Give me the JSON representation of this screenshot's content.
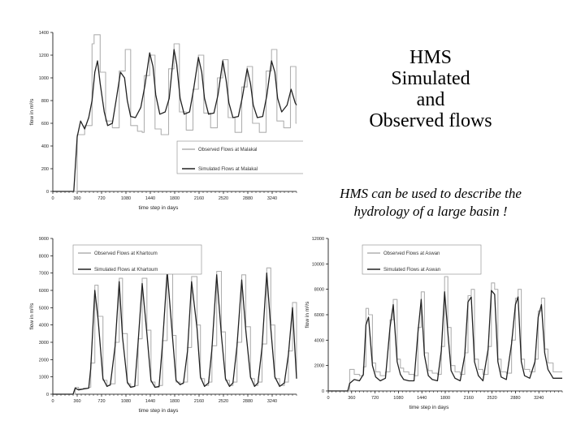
{
  "slide": {
    "title_lines": [
      "HMS",
      "Simulated",
      "and",
      "Observed flows"
    ],
    "caption_lines": [
      "HMS can be used to describe the",
      "hydrology of a large basin !"
    ]
  },
  "chart_data": [
    {
      "type": "line",
      "title": "",
      "xlabel": "time step in days",
      "ylabel": "flow in m³/s",
      "xlim": [
        0,
        3600
      ],
      "ylim": [
        0,
        1400
      ],
      "xticks": [
        0,
        360,
        720,
        1080,
        1440,
        1800,
        2160,
        2520,
        2880,
        3240
      ],
      "yticks": [
        0,
        200,
        400,
        600,
        800,
        1000,
        1200,
        1400
      ],
      "legend_position": "bottom-right",
      "series": [
        {
          "name": "Observed Flows at Malakal",
          "color": "#b0b0b0",
          "style": "stepped",
          "x": [
            0,
            310,
            360,
            470,
            580,
            610,
            700,
            780,
            880,
            950,
            980,
            1070,
            1150,
            1250,
            1320,
            1350,
            1430,
            1510,
            1600,
            1680,
            1710,
            1790,
            1870,
            1970,
            2040,
            2070,
            2150,
            2230,
            2330,
            2400,
            2430,
            2510,
            2590,
            2690,
            2760,
            2790,
            2870,
            2950,
            3050,
            3120,
            3150,
            3230,
            3310,
            3410,
            3480,
            3510,
            3590,
            3600
          ],
          "y": [
            0,
            0,
            500,
            580,
            1300,
            1380,
            1050,
            620,
            560,
            560,
            1060,
            1250,
            580,
            530,
            520,
            1020,
            1200,
            550,
            500,
            500,
            1080,
            1300,
            700,
            540,
            540,
            900,
            1200,
            690,
            560,
            560,
            1000,
            1160,
            650,
            520,
            520,
            920,
            1100,
            600,
            520,
            520,
            1060,
            1250,
            620,
            560,
            560,
            1100,
            600,
            600
          ]
        },
        {
          "name": "Simulated Flows at Malakal",
          "color": "#222222",
          "style": "smooth",
          "x": [
            0,
            310,
            360,
            410,
            470,
            530,
            580,
            620,
            660,
            700,
            760,
            810,
            880,
            940,
            1000,
            1060,
            1100,
            1150,
            1220,
            1300,
            1360,
            1430,
            1480,
            1520,
            1580,
            1660,
            1720,
            1790,
            1830,
            1880,
            1940,
            2020,
            2080,
            2150,
            2200,
            2240,
            2300,
            2380,
            2440,
            2510,
            2560,
            2600,
            2660,
            2740,
            2800,
            2870,
            2920,
            2960,
            3020,
            3100,
            3160,
            3230,
            3280,
            3320,
            3380,
            3460,
            3520,
            3580,
            3600
          ],
          "y": [
            0,
            0,
            480,
            620,
            550,
            650,
            800,
            1050,
            1150,
            950,
            700,
            580,
            600,
            820,
            1050,
            1000,
            800,
            660,
            650,
            740,
            930,
            1220,
            1100,
            850,
            680,
            700,
            820,
            1250,
            1120,
            820,
            680,
            700,
            900,
            1180,
            1050,
            820,
            680,
            690,
            850,
            1150,
            980,
            780,
            650,
            660,
            830,
            1080,
            950,
            760,
            650,
            660,
            840,
            1150,
            1050,
            820,
            700,
            760,
            900,
            780,
            760
          ]
        }
      ]
    },
    {
      "type": "line",
      "title": "",
      "xlabel": "time step in days",
      "ylabel": "flow in m³/s",
      "xlim": [
        0,
        3600
      ],
      "ylim": [
        0,
        9000
      ],
      "xticks": [
        0,
        360,
        720,
        1080,
        1440,
        1800,
        2160,
        2520,
        2880,
        3240
      ],
      "yticks": [
        0,
        1000,
        2000,
        3000,
        4000,
        5000,
        6000,
        7000,
        8000,
        9000
      ],
      "legend_position": "top-left",
      "series": [
        {
          "name": "Observed Flows at Khartoum",
          "color": "#b0b0b0",
          "style": "stepped",
          "x": [
            0,
            300,
            330,
            380,
            450,
            530,
            560,
            620,
            670,
            740,
            800,
            850,
            920,
            980,
            1030,
            1100,
            1150,
            1210,
            1260,
            1320,
            1390,
            1450,
            1510,
            1570,
            1620,
            1690,
            1770,
            1820,
            1880,
            1930,
            1990,
            2050,
            2130,
            2180,
            2240,
            2300,
            2350,
            2420,
            2490,
            2550,
            2610,
            2660,
            2720,
            2790,
            2850,
            2920,
            2980,
            3030,
            3090,
            3160,
            3220,
            3280,
            3350,
            3420,
            3480,
            3540,
            3600
          ],
          "y": [
            0,
            0,
            400,
            300,
            350,
            400,
            1800,
            6300,
            4500,
            800,
            500,
            600,
            3000,
            6700,
            3500,
            600,
            450,
            500,
            3200,
            6700,
            3700,
            700,
            400,
            500,
            3100,
            7300,
            3400,
            700,
            600,
            700,
            2700,
            6800,
            4000,
            900,
            500,
            700,
            2800,
            7100,
            3600,
            800,
            500,
            700,
            3000,
            6900,
            3900,
            900,
            500,
            700,
            2900,
            7300,
            4000,
            900,
            500,
            700,
            2500,
            5300,
            900
          ]
        },
        {
          "name": "Simulated Flows at Khartoum",
          "color": "#222222",
          "style": "smooth",
          "x": [
            0,
            300,
            330,
            380,
            450,
            530,
            560,
            620,
            670,
            740,
            800,
            850,
            920,
            980,
            1030,
            1100,
            1150,
            1210,
            1260,
            1320,
            1390,
            1450,
            1510,
            1570,
            1620,
            1690,
            1770,
            1820,
            1880,
            1930,
            1990,
            2050,
            2130,
            2180,
            2240,
            2300,
            2350,
            2420,
            2490,
            2550,
            2610,
            2660,
            2720,
            2790,
            2850,
            2920,
            2980,
            3030,
            3090,
            3160,
            3220,
            3280,
            3350,
            3420,
            3480,
            3540,
            3600
          ],
          "y": [
            0,
            0,
            350,
            250,
            300,
            350,
            1500,
            6000,
            4300,
            900,
            450,
            550,
            2800,
            6500,
            3300,
            700,
            400,
            450,
            3000,
            6400,
            3500,
            800,
            400,
            450,
            2900,
            7100,
            3200,
            800,
            550,
            650,
            2500,
            6500,
            3800,
            1000,
            450,
            650,
            2600,
            6900,
            3400,
            900,
            450,
            650,
            2800,
            6600,
            3700,
            1000,
            450,
            650,
            2700,
            7000,
            3800,
            1000,
            450,
            650,
            2300,
            5000,
            900
          ]
        }
      ]
    },
    {
      "type": "line",
      "title": "",
      "xlabel": "time step in days",
      "ylabel": "flow in m³/s",
      "xlim": [
        0,
        3600
      ],
      "ylim": [
        0,
        12000
      ],
      "xticks": [
        0,
        360,
        720,
        1080,
        1440,
        1800,
        2160,
        2520,
        2880,
        3240
      ],
      "yticks": [
        0,
        2000,
        4000,
        6000,
        8000,
        10000,
        12000
      ],
      "legend_position": "top-left",
      "series": [
        {
          "name": "Observed Flows at Aswan",
          "color": "#b0b0b0",
          "style": "stepped",
          "x": [
            0,
            300,
            330,
            400,
            480,
            540,
            580,
            620,
            680,
            730,
            800,
            880,
            950,
            1000,
            1060,
            1110,
            1160,
            1240,
            1320,
            1380,
            1430,
            1480,
            1540,
            1600,
            1680,
            1740,
            1790,
            1840,
            1890,
            1950,
            2030,
            2100,
            2150,
            2200,
            2250,
            2310,
            2380,
            2460,
            2510,
            2560,
            2610,
            2660,
            2740,
            2820,
            2880,
            2920,
            2970,
            3020,
            3100,
            3180,
            3230,
            3280,
            3330,
            3380,
            3460,
            3540,
            3600
          ],
          "y": [
            0,
            0,
            1700,
            1300,
            1200,
            1900,
            6500,
            6000,
            2200,
            1500,
            1200,
            1500,
            5600,
            7200,
            2500,
            1800,
            1500,
            1300,
            1200,
            5000,
            7800,
            3000,
            1600,
            1400,
            1300,
            3500,
            9000,
            5000,
            2000,
            1500,
            1300,
            3000,
            7500,
            8000,
            2500,
            1700,
            1300,
            3500,
            8500,
            8000,
            2500,
            1500,
            1400,
            4000,
            7300,
            8000,
            2500,
            1700,
            1500,
            2500,
            6300,
            7300,
            3300,
            2200,
            1500,
            1500,
            1500
          ]
        },
        {
          "name": "Simulated Flows at Aswan",
          "color": "#222222",
          "style": "smooth",
          "x": [
            0,
            300,
            330,
            400,
            480,
            540,
            580,
            620,
            680,
            730,
            800,
            880,
            950,
            1000,
            1060,
            1110,
            1160,
            1240,
            1320,
            1380,
            1430,
            1480,
            1540,
            1600,
            1680,
            1740,
            1790,
            1840,
            1890,
            1950,
            2030,
            2100,
            2150,
            2200,
            2250,
            2310,
            2380,
            2460,
            2510,
            2560,
            2610,
            2660,
            2740,
            2820,
            2880,
            2920,
            2970,
            3020,
            3100,
            3180,
            3230,
            3280,
            3330,
            3380,
            3460,
            3540,
            3600
          ],
          "y": [
            0,
            0,
            600,
            900,
            800,
            1300,
            5200,
            5800,
            2000,
            1100,
            800,
            1000,
            5000,
            6800,
            2300,
            1300,
            900,
            800,
            800,
            4600,
            7200,
            2800,
            1200,
            900,
            800,
            3200,
            7800,
            4600,
            1600,
            1000,
            800,
            2800,
            7000,
            7400,
            2300,
            1200,
            800,
            3300,
            7900,
            7600,
            2300,
            1100,
            900,
            3700,
            6800,
            7400,
            2300,
            1200,
            1000,
            2300,
            5800,
            6800,
            3000,
            1700,
            1000,
            1000,
            1000
          ]
        }
      ]
    }
  ]
}
